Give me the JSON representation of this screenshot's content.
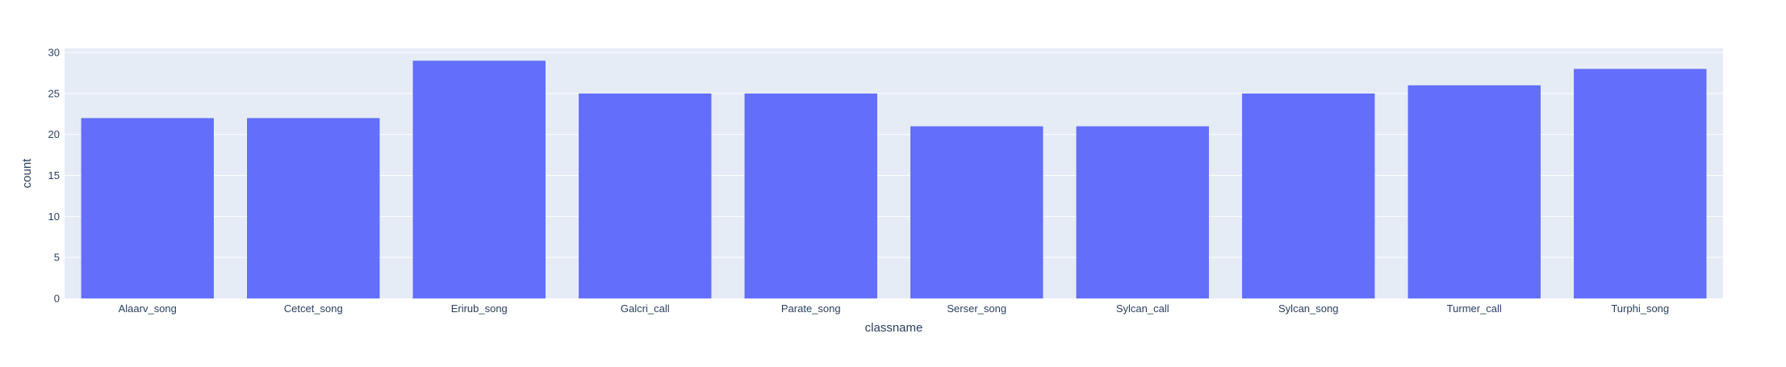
{
  "chart_data": {
    "type": "bar",
    "categories": [
      "Alaarv_song",
      "Cetcet_song",
      "Erirub_song",
      "Galcri_call",
      "Parate_song",
      "Serser_song",
      "Sylcan_call",
      "Sylcan_song",
      "Turmer_call",
      "Turphi_song"
    ],
    "values": [
      22,
      22,
      29,
      25,
      25,
      21,
      21,
      25,
      26,
      28
    ],
    "xlabel": "classname",
    "ylabel": "count",
    "ylim": [
      0,
      30.5
    ],
    "yticks": [
      0,
      5,
      10,
      15,
      20,
      25,
      30
    ],
    "grid": true,
    "bar_color": "#636efa",
    "plot_bg_color": "#e5ecf6",
    "grid_color": "#ffffff",
    "text_color": "#2a3f5f"
  }
}
